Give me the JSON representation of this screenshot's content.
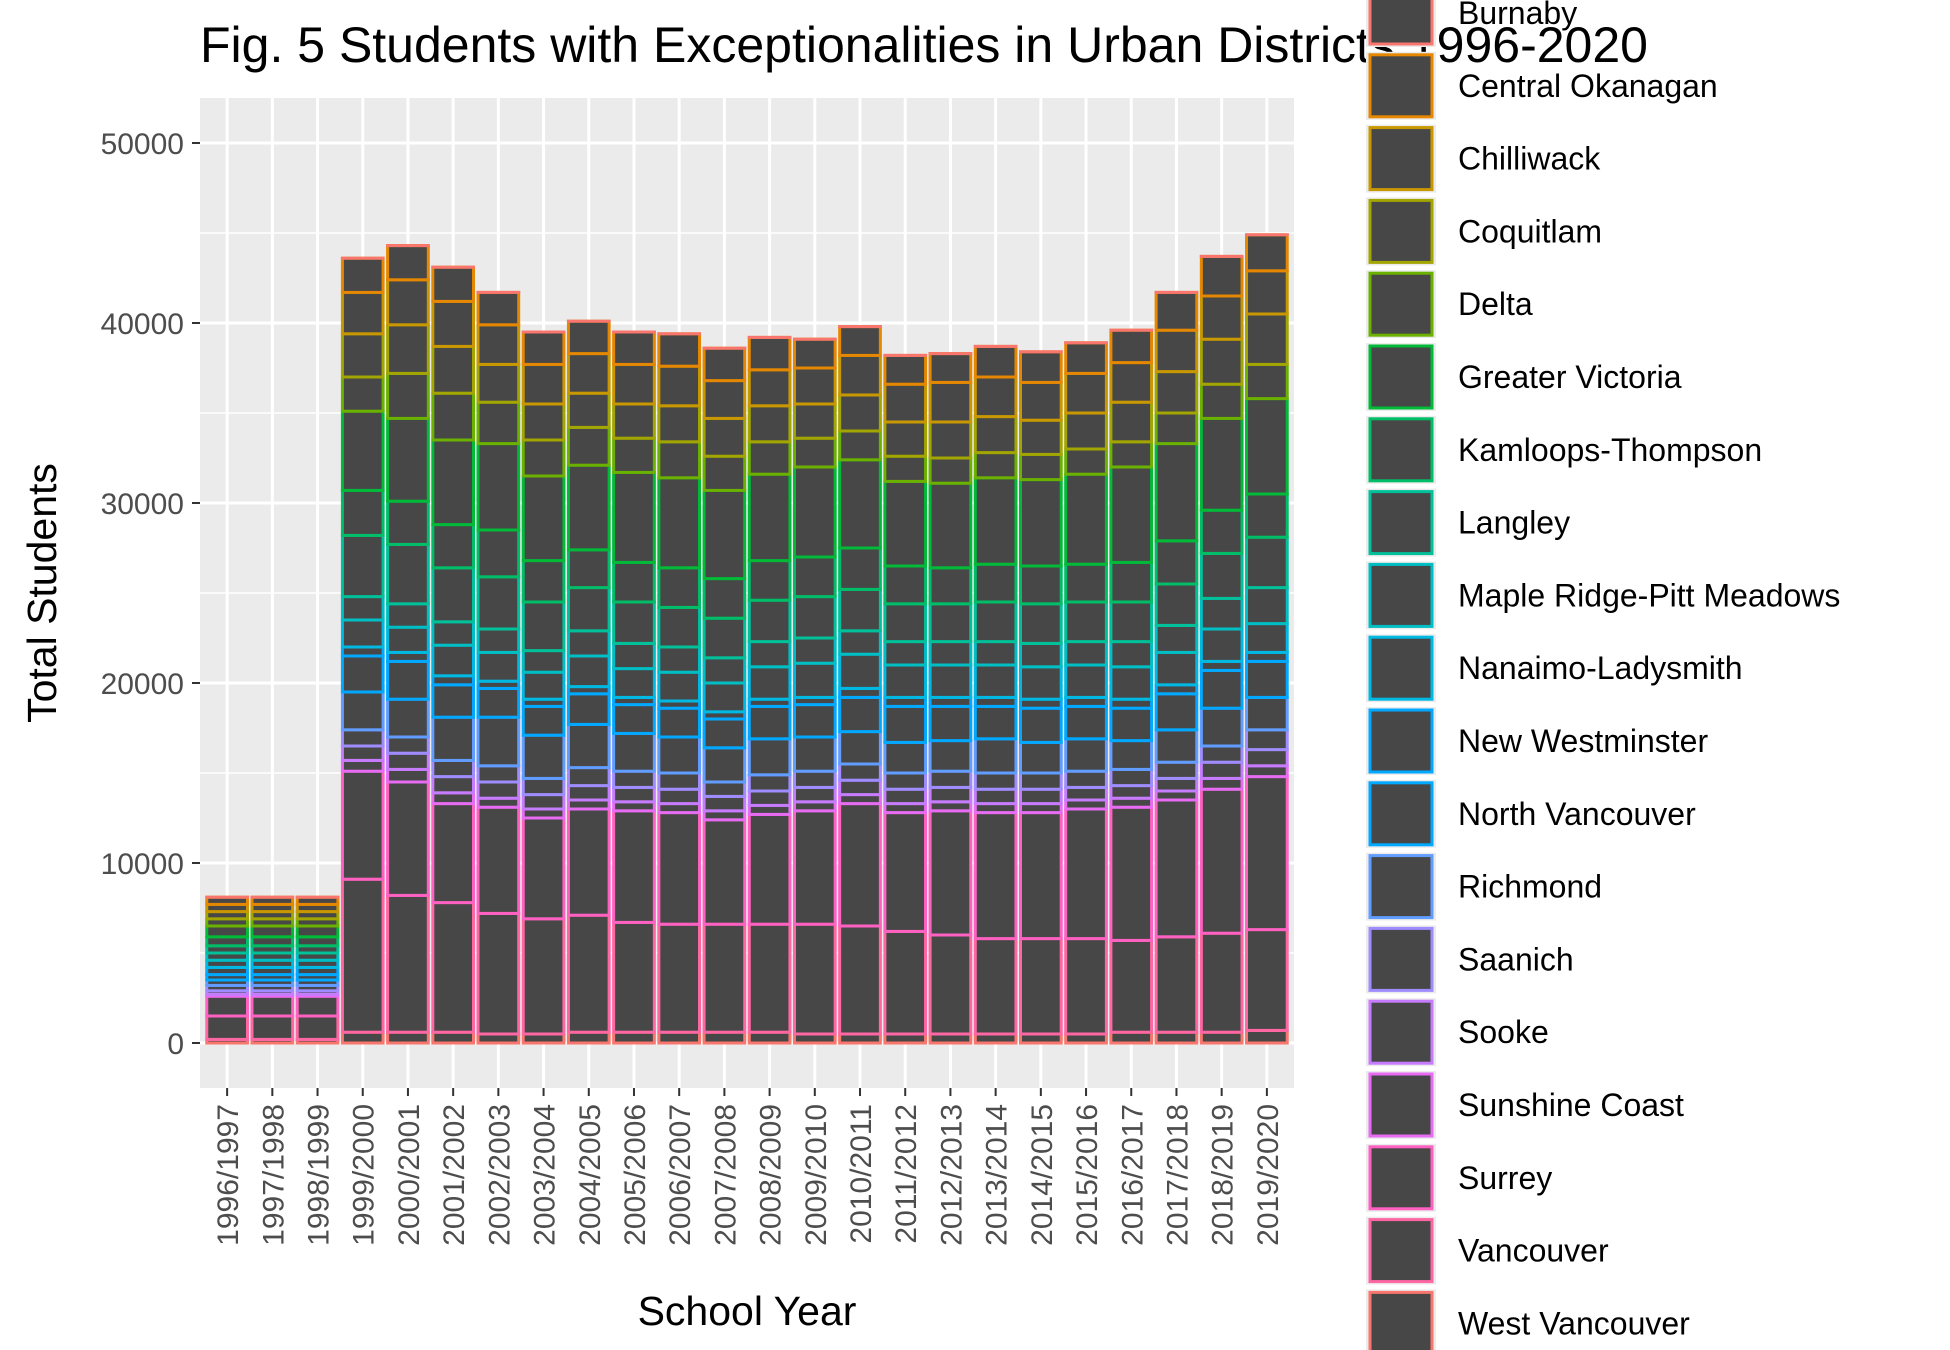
{
  "chart_data": {
    "type": "bar",
    "stacked": true,
    "title": "Fig. 5 Students with Exceptionalities in Urban Districts 1996-2020",
    "xlabel": "School Year",
    "ylabel": "Total Students",
    "ylim": [
      -2500,
      52500
    ],
    "yticks": [
      0,
      10000,
      20000,
      30000,
      40000,
      50000
    ],
    "grid": true,
    "legend_position": "right",
    "panel_background": "#ebebeb",
    "bar_fill": "#474747",
    "categories": [
      "1996/1997",
      "1997/1998",
      "1998/1999",
      "1999/2000",
      "2000/2001",
      "2001/2002",
      "2002/2003",
      "2003/2004",
      "2004/2005",
      "2005/2006",
      "2006/2007",
      "2007/2008",
      "2008/2009",
      "2009/2010",
      "2010/2011",
      "2011/2012",
      "2012/2013",
      "2013/2014",
      "2014/2015",
      "2015/2016",
      "2016/2017",
      "2017/2018",
      "2018/2019",
      "2019/2020"
    ],
    "series": [
      {
        "name": "Burnaby",
        "color": "#F8766D",
        "values": [
          0,
          0,
          0,
          0,
          0,
          0,
          0,
          0,
          0,
          0,
          0,
          0,
          0,
          0,
          0,
          0,
          0,
          0,
          0,
          0,
          0,
          0,
          0,
          0
        ]
      },
      {
        "name": "Central Okanagan",
        "color": "#E58700",
        "values": [
          400,
          400,
          400,
          1900,
          1900,
          1900,
          1800,
          1800,
          1800,
          1800,
          1800,
          1800,
          1800,
          1600,
          1600,
          1600,
          1600,
          1700,
          1700,
          1700,
          1800,
          2100,
          2200,
          2000
        ]
      },
      {
        "name": "Chilliwack",
        "color": "#C99800",
        "values": [
          400,
          400,
          400,
          2300,
          2500,
          2500,
          2200,
          2200,
          2200,
          2200,
          2200,
          2100,
          2000,
          2000,
          2200,
          2100,
          2200,
          2200,
          2100,
          2200,
          2200,
          2300,
          2400,
          2400
        ]
      },
      {
        "name": "Coquitlam",
        "color": "#A3A500",
        "values": [
          400,
          400,
          400,
          2400,
          2700,
          2600,
          2100,
          2000,
          1900,
          1900,
          2000,
          2100,
          2000,
          1900,
          2000,
          1900,
          2000,
          2000,
          1900,
          2000,
          2200,
          2300,
          2500,
          2800
        ]
      },
      {
        "name": "Delta",
        "color": "#6BB100",
        "values": [
          400,
          400,
          400,
          1900,
          2500,
          2600,
          2300,
          2000,
          2100,
          1900,
          2000,
          1900,
          1800,
          1600,
          1600,
          1400,
          1400,
          1400,
          1400,
          1400,
          1400,
          1700,
          1900,
          1900
        ]
      },
      {
        "name": "Greater Victoria",
        "color": "#00BA38",
        "values": [
          600,
          600,
          600,
          4400,
          4600,
          4700,
          4800,
          4700,
          4700,
          5000,
          5000,
          4900,
          4800,
          5000,
          4900,
          4700,
          4700,
          4800,
          4800,
          5000,
          5300,
          5400,
          5100,
          5300
        ]
      },
      {
        "name": "Kamloops-Thompson",
        "color": "#00BE67",
        "values": [
          500,
          500,
          500,
          2500,
          2400,
          2400,
          2600,
          2300,
          2100,
          2200,
          2200,
          2200,
          2200,
          2200,
          2300,
          2100,
          2000,
          2100,
          2100,
          2100,
          2200,
          2400,
          2400,
          2400
        ]
      },
      {
        "name": "Langley",
        "color": "#00C19A",
        "values": [
          400,
          400,
          400,
          3400,
          3300,
          3000,
          2900,
          2700,
          2400,
          2300,
          2200,
          2200,
          2300,
          2300,
          2300,
          2100,
          2100,
          2200,
          2200,
          2200,
          2200,
          2300,
          2500,
          2800
        ]
      },
      {
        "name": "Maple Ridge-Pitt Meadows",
        "color": "#00BFC4",
        "values": [
          400,
          400,
          400,
          1300,
          1300,
          1300,
          1300,
          1200,
          1400,
          1400,
          1400,
          1400,
          1400,
          1400,
          1300,
          1300,
          1300,
          1300,
          1300,
          1300,
          1400,
          1500,
          1700,
          2000
        ]
      },
      {
        "name": "Nanaimo-Ladysmith",
        "color": "#00B9E3",
        "values": [
          400,
          400,
          400,
          1500,
          1400,
          1700,
          1600,
          1500,
          1700,
          1600,
          1600,
          1600,
          1800,
          1900,
          1900,
          1800,
          1800,
          1800,
          1800,
          1800,
          1800,
          1800,
          1800,
          1600
        ]
      },
      {
        "name": "New Westminster",
        "color": "#00A9FF",
        "values": [
          400,
          400,
          400,
          500,
          500,
          500,
          400,
          400,
          400,
          400,
          400,
          400,
          400,
          400,
          500,
          500,
          500,
          500,
          500,
          500,
          500,
          500,
          500,
          500
        ]
      },
      {
        "name": "North Vancouver",
        "color": "#00A9FF",
        "values": [
          300,
          300,
          300,
          2000,
          2100,
          1800,
          1600,
          1600,
          1700,
          1600,
          1600,
          1600,
          1800,
          1800,
          1900,
          2000,
          1900,
          1800,
          1900,
          1800,
          1800,
          2000,
          2100,
          2000
        ]
      },
      {
        "name": "Richmond",
        "color": "#619CFF",
        "values": [
          300,
          300,
          300,
          2100,
          2100,
          2400,
          2700,
          2400,
          2400,
          2100,
          2000,
          1900,
          2000,
          1900,
          1800,
          1700,
          1700,
          1900,
          1700,
          1800,
          1600,
          1800,
          2100,
          1800
        ]
      },
      {
        "name": "Saanich",
        "color": "#9F8CFF",
        "values": [
          300,
          300,
          300,
          900,
          900,
          900,
          900,
          900,
          1000,
          900,
          900,
          800,
          900,
          900,
          900,
          900,
          900,
          900,
          900,
          900,
          900,
          900,
          900,
          1100
        ]
      },
      {
        "name": "Sooke",
        "color": "#C77CFF",
        "values": [
          200,
          200,
          200,
          800,
          900,
          900,
          900,
          800,
          800,
          800,
          800,
          800,
          800,
          800,
          800,
          800,
          800,
          800,
          800,
          700,
          700,
          700,
          900,
          900
        ]
      },
      {
        "name": "Sunshine Coast",
        "color": "#E76BF3",
        "values": [
          100,
          100,
          100,
          600,
          700,
          600,
          500,
          500,
          500,
          500,
          500,
          500,
          500,
          500,
          500,
          500,
          500,
          500,
          500,
          500,
          500,
          500,
          600,
          600
        ]
      },
      {
        "name": "Surrey",
        "color": "#FF61C3",
        "values": [
          1100,
          1100,
          1100,
          6000,
          6300,
          5500,
          5900,
          5600,
          5900,
          6200,
          6200,
          5800,
          6100,
          6300,
          6800,
          6600,
          6900,
          7000,
          7000,
          7200,
          7400,
          7600,
          8000,
          8500
        ]
      },
      {
        "name": "Vancouver",
        "color": "#FF67A4",
        "values": [
          1300,
          1300,
          1300,
          8500,
          7600,
          7200,
          6700,
          6400,
          6500,
          6100,
          6000,
          6000,
          6000,
          6100,
          6000,
          5700,
          5500,
          5300,
          5300,
          5300,
          5100,
          5300,
          5500,
          5600
        ]
      },
      {
        "name": "West Vancouver",
        "color": "#F8766D",
        "values": [
          200,
          200,
          200,
          600,
          600,
          600,
          500,
          500,
          600,
          600,
          600,
          600,
          600,
          500,
          500,
          500,
          500,
          500,
          500,
          500,
          600,
          600,
          600,
          700
        ]
      }
    ]
  }
}
